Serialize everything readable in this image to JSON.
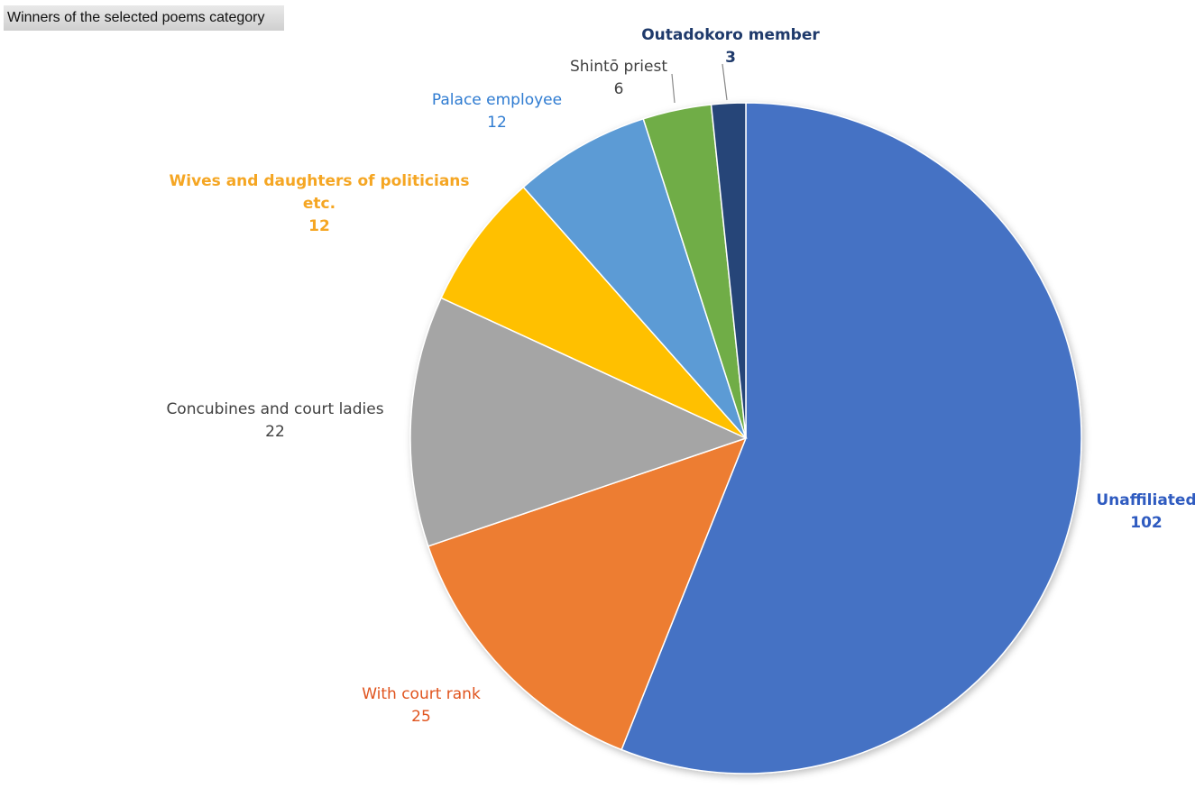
{
  "title": "Winners of the selected poems category",
  "chart_data": {
    "type": "pie",
    "title": "Winners of the selected poems category",
    "start": "12 o'clock, clockwise",
    "slices": [
      {
        "label": "Unaffiliated",
        "value": 102,
        "color": "#4472C4",
        "text_color": "#2F5BC0",
        "bold": true
      },
      {
        "label": "With court rank",
        "value": 25,
        "color": "#ED7D31",
        "text_color": "#E0541E",
        "bold": false
      },
      {
        "label": "Concubines and court ladies",
        "value": 22,
        "color": "#A5A5A5",
        "text_color": "#404040",
        "bold": false
      },
      {
        "label": "Wives and daughters of politicians etc.",
        "label_lines": [
          "Wives and daughters of politicians",
          "etc."
        ],
        "value": 12,
        "color": "#FFC000",
        "text_color": "#F5A623",
        "bold": true
      },
      {
        "label": "Palace employee",
        "value": 12,
        "color": "#5B9BD5",
        "text_color": "#2E7BD1",
        "bold": false
      },
      {
        "label": "Shintō priest",
        "value": 6,
        "color": "#70AD47",
        "text_color": "#404040",
        "bold": false
      },
      {
        "label": "Outadokoro member",
        "value": 3,
        "color": "#264478",
        "text_color": "#1F3A6B",
        "bold": true
      }
    ]
  }
}
